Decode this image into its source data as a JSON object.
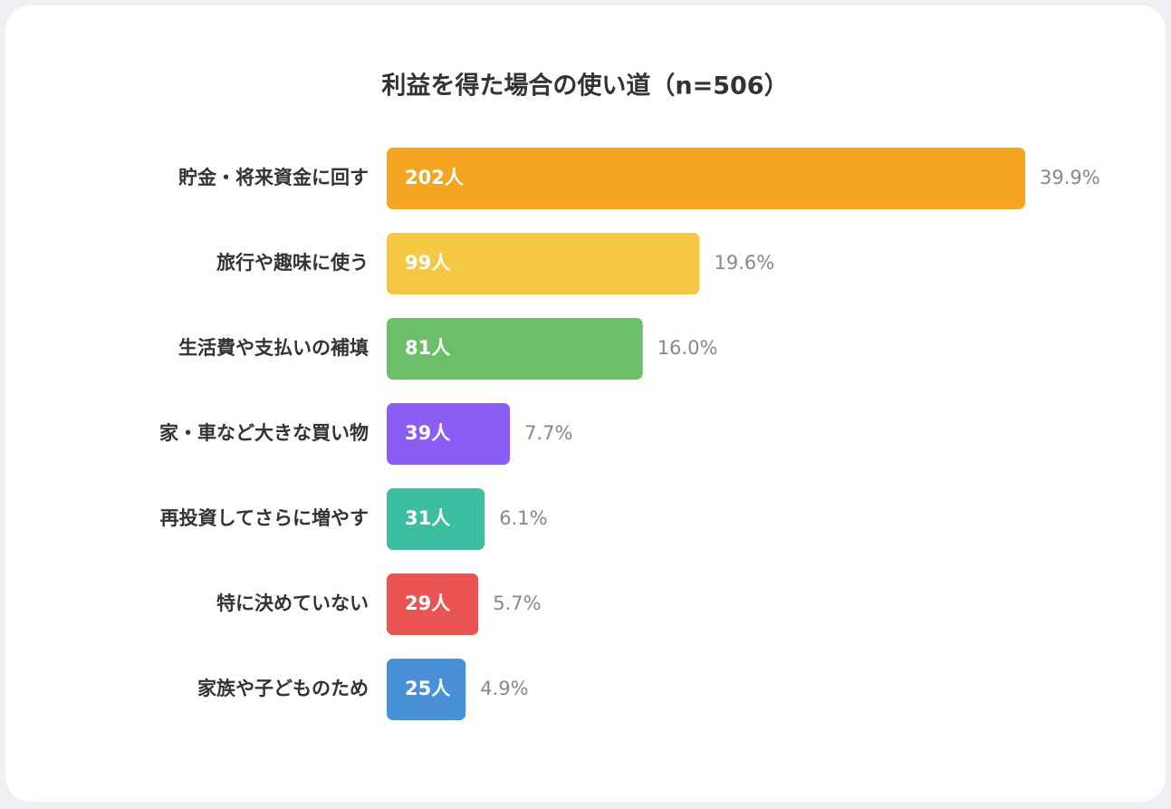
{
  "chart_data": {
    "type": "bar",
    "orientation": "horizontal",
    "title": "利益を得た場合の使い道（n=506）",
    "categories": [
      "貯金・将来資金に回す",
      "旅行や趣味に使う",
      "生活費や支払いの補填",
      "家・車など大きな買い物",
      "再投資してさらに増やす",
      "特に決めていない",
      "家族や子どものため"
    ],
    "values": [
      202,
      99,
      81,
      39,
      31,
      29,
      25
    ],
    "value_labels": [
      "202人",
      "99人",
      "81人",
      "39人",
      "31人",
      "29人",
      "25人"
    ],
    "percentages": [
      39.9,
      19.6,
      16.0,
      7.7,
      6.1,
      5.7,
      4.9
    ],
    "percentage_labels": [
      "39.9%",
      "19.6%",
      "16.0%",
      "7.7%",
      "6.1%",
      "5.7%",
      "4.9%"
    ],
    "colors": [
      "#f4a622",
      "#f4c842",
      "#6cbf6a",
      "#8b5cf6",
      "#3bbfa0",
      "#ea5454",
      "#4a90d9"
    ]
  }
}
